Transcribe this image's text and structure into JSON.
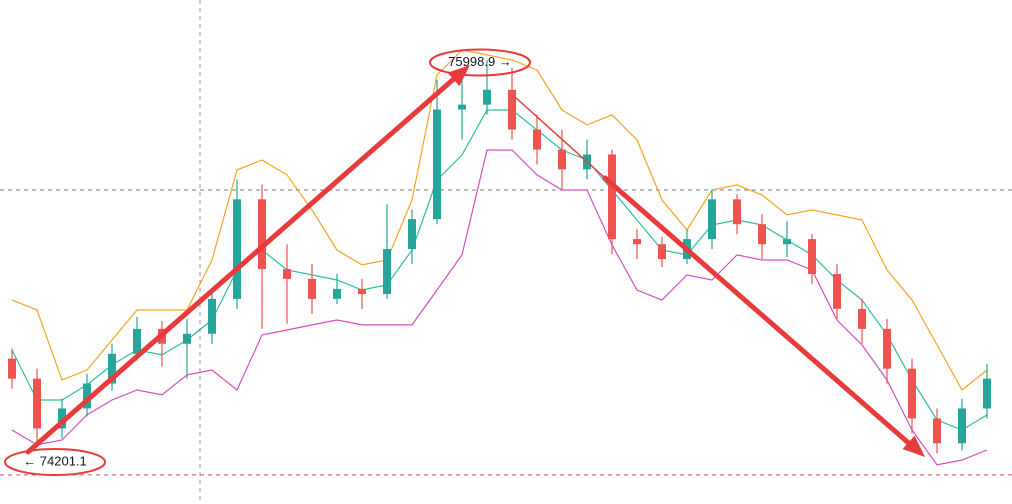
{
  "chart_data": {
    "type": "candlestick",
    "ylim": [
      74012,
      76280
    ],
    "up_color": "#26a69a",
    "down_color": "#ef5350",
    "candles": [
      {
        "open": 74666,
        "high": 74711,
        "low": 74531,
        "close": 74576
      },
      {
        "open": 74576,
        "high": 74621,
        "low": 74285,
        "close": 74352
      },
      {
        "open": 74352,
        "high": 74486,
        "low": 74307,
        "close": 74442
      },
      {
        "open": 74442,
        "high": 74598,
        "low": 74406,
        "close": 74554
      },
      {
        "open": 74554,
        "high": 74733,
        "low": 74522,
        "close": 74688
      },
      {
        "open": 74688,
        "high": 74854,
        "low": 74657,
        "close": 74800
      },
      {
        "open": 74800,
        "high": 74836,
        "low": 74630,
        "close": 74733
      },
      {
        "open": 74733,
        "high": 74845,
        "low": 74576,
        "close": 74778
      },
      {
        "open": 74778,
        "high": 74980,
        "low": 74733,
        "close": 74935
      },
      {
        "open": 74935,
        "high": 75473,
        "low": 74890,
        "close": 75383
      },
      {
        "open": 75383,
        "high": 75450,
        "low": 74800,
        "close": 75069
      },
      {
        "open": 75069,
        "high": 75181,
        "low": 74823,
        "close": 75025
      },
      {
        "open": 75025,
        "high": 75092,
        "low": 74868,
        "close": 74935
      },
      {
        "open": 74935,
        "high": 75047,
        "low": 74912,
        "close": 74980
      },
      {
        "open": 74980,
        "high": 75025,
        "low": 74890,
        "close": 74957
      },
      {
        "open": 74957,
        "high": 75361,
        "low": 74935,
        "close": 75159
      },
      {
        "open": 75159,
        "high": 75338,
        "low": 75092,
        "close": 75294
      },
      {
        "open": 75294,
        "high": 75921,
        "low": 75271,
        "close": 75787
      },
      {
        "open": 75787,
        "high": 75966,
        "low": 75652,
        "close": 75809
      },
      {
        "open": 75809,
        "high": 76011,
        "low": 75764,
        "close": 75876
      },
      {
        "open": 75876,
        "high": 75975,
        "low": 75652,
        "close": 75697
      },
      {
        "open": 75697,
        "high": 75764,
        "low": 75540,
        "close": 75607
      },
      {
        "open": 75607,
        "high": 75697,
        "low": 75428,
        "close": 75518
      },
      {
        "open": 75518,
        "high": 75652,
        "low": 75473,
        "close": 75585
      },
      {
        "open": 75585,
        "high": 75607,
        "low": 75137,
        "close": 75204
      },
      {
        "open": 75204,
        "high": 75249,
        "low": 75114,
        "close": 75181
      },
      {
        "open": 75181,
        "high": 75213,
        "low": 75078,
        "close": 75114
      },
      {
        "open": 75114,
        "high": 75249,
        "low": 75092,
        "close": 75204
      },
      {
        "open": 75204,
        "high": 75428,
        "low": 75159,
        "close": 75383
      },
      {
        "open": 75383,
        "high": 75406,
        "low": 75226,
        "close": 75271
      },
      {
        "open": 75271,
        "high": 75316,
        "low": 75114,
        "close": 75181
      },
      {
        "open": 75181,
        "high": 75285,
        "low": 75123,
        "close": 75204
      },
      {
        "open": 75204,
        "high": 75226,
        "low": 75002,
        "close": 75047
      },
      {
        "open": 75047,
        "high": 75092,
        "low": 74845,
        "close": 74890
      },
      {
        "open": 74890,
        "high": 74935,
        "low": 74733,
        "close": 74800
      },
      {
        "open": 74800,
        "high": 74845,
        "low": 74554,
        "close": 74621
      },
      {
        "open": 74621,
        "high": 74666,
        "low": 74329,
        "close": 74397
      },
      {
        "open": 74397,
        "high": 74442,
        "low": 74240,
        "close": 74285
      },
      {
        "open": 74285,
        "high": 74486,
        "low": 74253,
        "close": 74442
      },
      {
        "open": 74442,
        "high": 74643,
        "low": 74397,
        "close": 74576
      }
    ],
    "bands": [
      {
        "color": "#f5a623",
        "values": [
          74930,
          74885,
          74570,
          74615,
          74750,
          74885,
          74885,
          74885,
          75110,
          75515,
          75560,
          75493,
          75335,
          75155,
          75088,
          75110,
          75380,
          75943,
          76055,
          76033,
          76010,
          75965,
          75785,
          75718,
          75763,
          75650,
          75380,
          75245,
          75425,
          75448,
          75403,
          75313,
          75335,
          75313,
          75290,
          75065,
          74930,
          74728,
          74525,
          74615
        ]
      },
      {
        "color": "#2bbf9f",
        "values": [
          74705,
          74480,
          74480,
          74548,
          74638,
          74705,
          74683,
          74750,
          74840,
          75065,
          75155,
          75065,
          75043,
          75020,
          74975,
          74998,
          75155,
          75470,
          75583,
          75785,
          75785,
          75695,
          75605,
          75560,
          75425,
          75290,
          75155,
          75133,
          75268,
          75290,
          75268,
          75200,
          75133,
          75020,
          74930,
          74773,
          74570,
          74390,
          74345,
          74413
        ]
      },
      {
        "color": "#d44fc0",
        "values": [
          74345,
          74278,
          74300,
          74413,
          74480,
          74525,
          74503,
          74593,
          74615,
          74525,
          74773,
          74795,
          74818,
          74840,
          74818,
          74818,
          74818,
          74975,
          75133,
          75605,
          75605,
          75493,
          75425,
          75425,
          75178,
          74975,
          74930,
          75043,
          75020,
          75133,
          75110,
          75110,
          75065,
          74840,
          74728,
          74570,
          74345,
          74188,
          74210,
          74255
        ]
      }
    ],
    "price_lines": [
      {
        "value": 75425,
        "color": "#787b86"
      },
      {
        "value": 74143,
        "color": "#e0506a"
      }
    ],
    "annotations": [
      {
        "value": 74201.1,
        "label": "← 74201.1",
        "candle": 1
      },
      {
        "value": 75998.9,
        "label": "75998.9 →",
        "candle": 18
      }
    ]
  }
}
